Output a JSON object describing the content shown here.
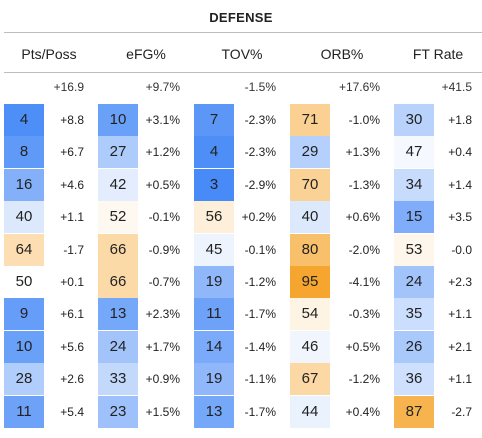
{
  "title": "DEFENSE",
  "columns": [
    {
      "label": "Pts/Poss",
      "top": "+16.9"
    },
    {
      "label": "eFG%",
      "top": "+9.7%"
    },
    {
      "label": "TOV%",
      "top": "-1.5%"
    },
    {
      "label": "ORB%",
      "top": "+17.6%"
    },
    {
      "label": "FT Rate",
      "top": "+41.5"
    }
  ],
  "rows": [
    [
      {
        "rank": "4",
        "diff": "+8.8"
      },
      {
        "rank": "10",
        "diff": "+3.1%"
      },
      {
        "rank": "7",
        "diff": "-2.3%"
      },
      {
        "rank": "71",
        "diff": "-1.0%"
      },
      {
        "rank": "30",
        "diff": "+1.8"
      }
    ],
    [
      {
        "rank": "8",
        "diff": "+6.7"
      },
      {
        "rank": "27",
        "diff": "+1.2%"
      },
      {
        "rank": "4",
        "diff": "-2.3%"
      },
      {
        "rank": "29",
        "diff": "+1.3%"
      },
      {
        "rank": "47",
        "diff": "+0.4"
      }
    ],
    [
      {
        "rank": "16",
        "diff": "+4.6"
      },
      {
        "rank": "42",
        "diff": "+0.5%"
      },
      {
        "rank": "3",
        "diff": "-2.9%"
      },
      {
        "rank": "70",
        "diff": "-1.3%"
      },
      {
        "rank": "34",
        "diff": "+1.4"
      }
    ],
    [
      {
        "rank": "40",
        "diff": "+1.1"
      },
      {
        "rank": "52",
        "diff": "-0.1%"
      },
      {
        "rank": "56",
        "diff": "+0.2%"
      },
      {
        "rank": "40",
        "diff": "+0.6%"
      },
      {
        "rank": "15",
        "diff": "+3.5"
      }
    ],
    [
      {
        "rank": "64",
        "diff": "-1.7"
      },
      {
        "rank": "66",
        "diff": "-0.9%"
      },
      {
        "rank": "45",
        "diff": "-0.1%"
      },
      {
        "rank": "80",
        "diff": "-2.0%"
      },
      {
        "rank": "53",
        "diff": "-0.0"
      }
    ],
    [
      {
        "rank": "50",
        "diff": "+0.1"
      },
      {
        "rank": "66",
        "diff": "-0.7%"
      },
      {
        "rank": "19",
        "diff": "-1.2%"
      },
      {
        "rank": "95",
        "diff": "-4.1%"
      },
      {
        "rank": "24",
        "diff": "+2.3"
      }
    ],
    [
      {
        "rank": "9",
        "diff": "+6.1"
      },
      {
        "rank": "13",
        "diff": "+2.3%"
      },
      {
        "rank": "11",
        "diff": "-1.7%"
      },
      {
        "rank": "54",
        "diff": "-0.3%"
      },
      {
        "rank": "35",
        "diff": "+1.1"
      }
    ],
    [
      {
        "rank": "10",
        "diff": "+5.6"
      },
      {
        "rank": "24",
        "diff": "+1.7%"
      },
      {
        "rank": "14",
        "diff": "-1.4%"
      },
      {
        "rank": "46",
        "diff": "+0.5%"
      },
      {
        "rank": "26",
        "diff": "+2.1"
      }
    ],
    [
      {
        "rank": "28",
        "diff": "+2.6"
      },
      {
        "rank": "33",
        "diff": "+0.9%"
      },
      {
        "rank": "19",
        "diff": "-1.1%"
      },
      {
        "rank": "67",
        "diff": "-1.2%"
      },
      {
        "rank": "36",
        "diff": "+1.1"
      }
    ],
    [
      {
        "rank": "11",
        "diff": "+5.4"
      },
      {
        "rank": "23",
        "diff": "+1.5%"
      },
      {
        "rank": "13",
        "diff": "-1.7%"
      },
      {
        "rank": "44",
        "diff": "+0.4%"
      },
      {
        "rank": "87",
        "diff": "-2.7"
      }
    ]
  ],
  "colors": {
    "blue_strong": "#3b82f6",
    "blue_light": "#dbe7fb",
    "neutral": "#ffffff",
    "orange_light": "#fde7c6",
    "orange_strong": "#f59e1b"
  }
}
